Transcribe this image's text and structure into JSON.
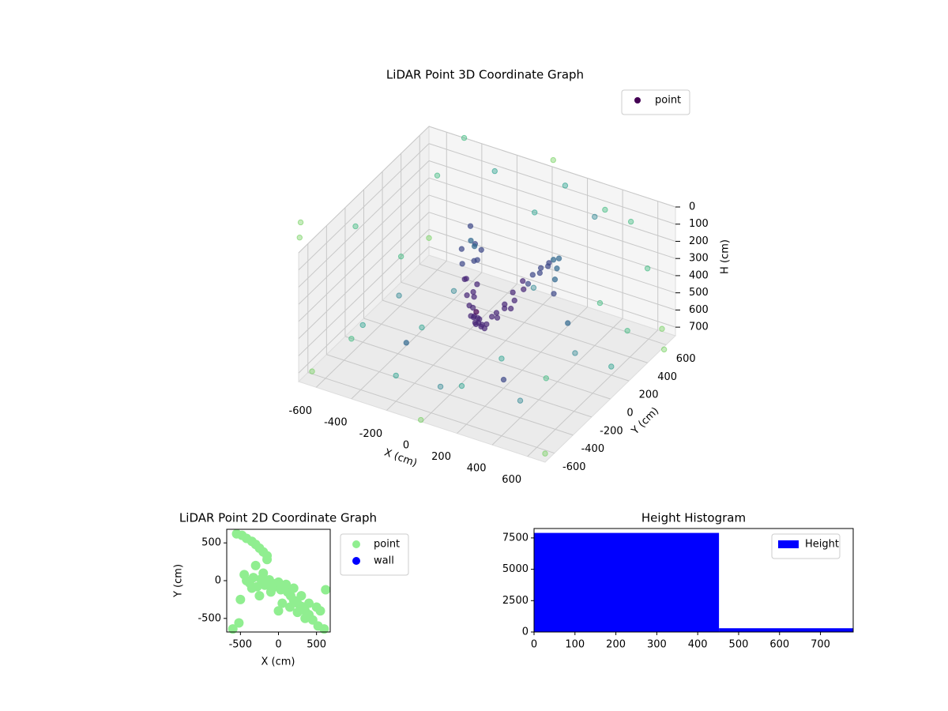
{
  "chart_data": [
    {
      "type": "scatter3d",
      "title": "LiDAR Point 3D Coordinate Graph",
      "xlabel": "X (cm)",
      "ylabel": "Y (cm)",
      "zlabel": "H (cm)",
      "xlim": [
        -700,
        700
      ],
      "ylim": [
        -700,
        700
      ],
      "zlim": [
        750,
        0
      ],
      "xticks": [
        -600,
        -400,
        -200,
        0,
        200,
        400,
        600
      ],
      "yticks": [
        -600,
        -400,
        -200,
        0,
        200,
        400,
        600
      ],
      "zticks": [
        0,
        100,
        200,
        300,
        400,
        500,
        600,
        700
      ],
      "colormap": "viridis",
      "legend": "upper right",
      "grid": true,
      "series": [
        {
          "name": "point",
          "color": "#440154",
          "x": [
            -250,
            -220,
            -200,
            -180,
            -150,
            -120,
            -100,
            -80,
            -50,
            -30,
            0,
            20,
            50,
            80,
            100,
            120,
            150,
            180,
            200,
            220,
            250,
            280,
            300,
            -230,
            -190,
            -160,
            -130,
            -90,
            -60,
            -20,
            10,
            40,
            70,
            110,
            140,
            170,
            210,
            240,
            270,
            -240,
            -170,
            -110,
            -40,
            30,
            90,
            160,
            230,
            60,
            -10,
            130,
            -900,
            -800,
            -700,
            -600,
            -500,
            -400,
            -300,
            -200,
            -100,
            0,
            100,
            200,
            300,
            400,
            500,
            600,
            700,
            800,
            900,
            650,
            -650,
            700,
            -700,
            -400,
            400,
            300,
            -300,
            200,
            -200,
            500,
            -500,
            0,
            0,
            -800,
            850,
            100,
            -100,
            600,
            -600,
            400
          ],
          "y": [
            200,
            150,
            250,
            100,
            180,
            120,
            50,
            0,
            -50,
            -80,
            -100,
            -120,
            -100,
            -50,
            0,
            50,
            100,
            150,
            200,
            250,
            300,
            200,
            150,
            300,
            220,
            80,
            30,
            -20,
            -60,
            -90,
            -110,
            -130,
            -80,
            -20,
            30,
            120,
            170,
            260,
            240,
            280,
            260,
            60,
            -40,
            -120,
            -60,
            90,
            220,
            -140,
            -100,
            10,
            -300,
            -500,
            400,
            600,
            700,
            -700,
            650,
            -600,
            700,
            -700,
            650,
            -650,
            700,
            -600,
            600,
            -500,
            400,
            -300,
            200,
            650,
            -650,
            -700,
            700,
            400,
            -400,
            300,
            -300,
            -200,
            200,
            0,
            0,
            500,
            -500,
            100,
            -100,
            -900,
            900,
            200,
            -200,
            400
          ],
          "z": [
            300,
            350,
            280,
            400,
            320,
            420,
            450,
            480,
            500,
            470,
            460,
            450,
            480,
            430,
            400,
            350,
            300,
            280,
            260,
            250,
            240,
            300,
            350,
            330,
            360,
            380,
            440,
            460,
            490,
            500,
            480,
            470,
            440,
            410,
            380,
            320,
            270,
            230,
            260,
            290,
            310,
            430,
            470,
            490,
            450,
            340,
            250,
            480,
            500,
            420,
            100,
            50,
            600,
            200,
            0,
            400,
            100,
            600,
            300,
            200,
            50,
            500,
            150,
            300,
            100,
            400,
            200,
            0,
            500,
            700,
            700,
            700,
            650,
            700,
            650,
            600,
            600,
            700,
            150,
            550,
            550,
            600,
            650,
            300,
            250,
            600,
            100,
            700,
            650,
            0
          ]
        }
      ]
    },
    {
      "type": "scatter",
      "title": "LiDAR Point 2D Coordinate Graph",
      "xlabel": "X (cm)",
      "ylabel": "Y (cm)",
      "xlim": [
        -680,
        680
      ],
      "ylim": [
        -680,
        680
      ],
      "xticks": [
        -500,
        0,
        500
      ],
      "yticks": [
        -500,
        0,
        500
      ],
      "legend": "outside right",
      "series": [
        {
          "name": "point",
          "color": "#90ee90",
          "x": [
            -550,
            -480,
            -420,
            -350,
            -300,
            -250,
            -200,
            -150,
            -420,
            -380,
            -330,
            -280,
            -230,
            -180,
            -120,
            -80,
            -40,
            0,
            30,
            80,
            120,
            160,
            200,
            250,
            300,
            350,
            400,
            450,
            520,
            600,
            -500,
            -350,
            -250,
            -100,
            50,
            150,
            250,
            350,
            -450,
            -200,
            100,
            200,
            300,
            400,
            500,
            550,
            -300,
            -150,
            0,
            620,
            -600,
            -520
          ],
          "y": [
            620,
            600,
            560,
            520,
            480,
            430,
            380,
            330,
            0,
            -30,
            40,
            -80,
            20,
            -60,
            10,
            -100,
            -40,
            -20,
            -120,
            -60,
            -150,
            -200,
            -260,
            -300,
            -340,
            -400,
            -450,
            -520,
            -600,
            -640,
            -250,
            -100,
            -200,
            -150,
            -300,
            -350,
            -420,
            -500,
            80,
            100,
            -50,
            -100,
            -200,
            -300,
            -350,
            -400,
            200,
            280,
            -400,
            -120,
            -640,
            -560
          ]
        },
        {
          "name": "wall",
          "color": "#0000ff",
          "x": [],
          "y": []
        }
      ]
    },
    {
      "type": "histogram",
      "title": "Height Histogram",
      "xlim": [
        0,
        780
      ],
      "ylim": [
        0,
        8250
      ],
      "xticks": [
        0,
        100,
        200,
        300,
        400,
        500,
        600,
        700
      ],
      "yticks": [
        0,
        2500,
        5000,
        7500
      ],
      "legend": "upper right",
      "series": [
        {
          "name": "Height",
          "color": "#0000ff",
          "bins": [
            0,
            452,
            780
          ],
          "counts": [
            7900,
            300
          ]
        }
      ]
    }
  ]
}
